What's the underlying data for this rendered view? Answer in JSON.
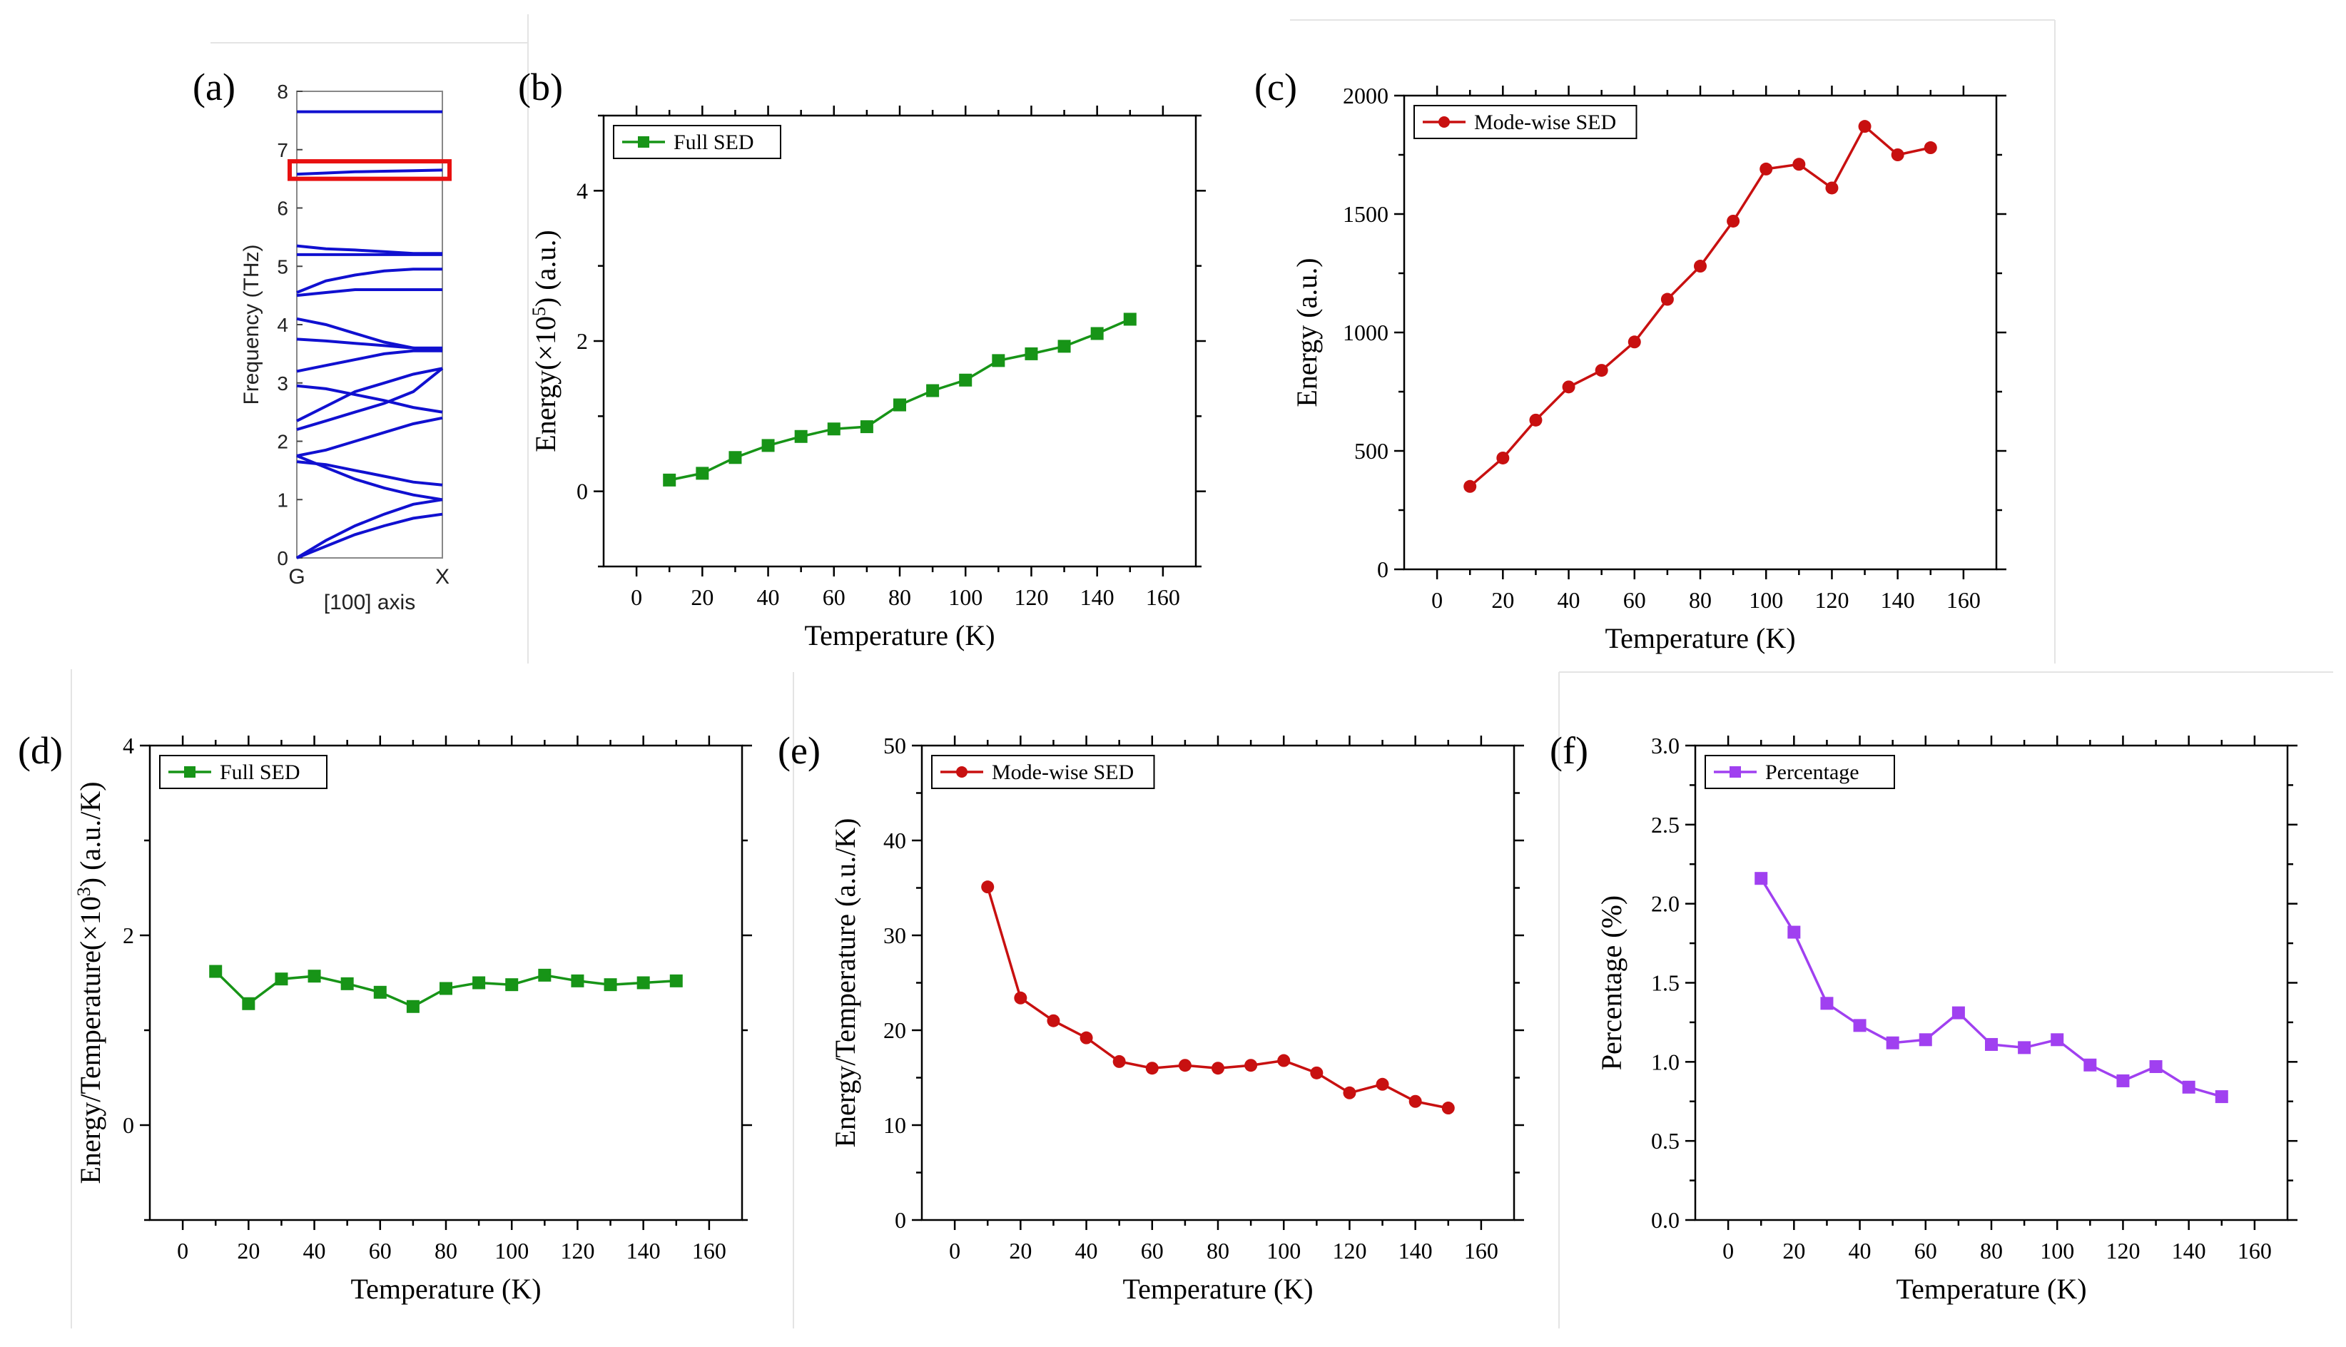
{
  "chart_data": [
    {
      "id": "a",
      "type": "line",
      "panel_label": "(a)",
      "title": "",
      "xlabel": "[100] axis",
      "ylabel": "Frequency (THz)",
      "x_ticks": [
        "G",
        "X"
      ],
      "ylim": [
        0,
        8
      ],
      "y_ticks": [
        0,
        1,
        2,
        3,
        4,
        5,
        6,
        7,
        8
      ],
      "line_color": "#1010d0",
      "highlight_color": "#e81010",
      "highlight_band": [
        6.5,
        6.8
      ],
      "x": [
        0,
        0.2,
        0.4,
        0.6,
        0.8,
        1.0
      ],
      "series": [
        {
          "name": "band-1",
          "values": [
            0.0,
            0.2,
            0.4,
            0.55,
            0.68,
            0.75
          ]
        },
        {
          "name": "band-2",
          "values": [
            0.0,
            0.3,
            0.55,
            0.75,
            0.92,
            1.0
          ]
        },
        {
          "name": "band-3",
          "values": [
            1.65,
            1.6,
            1.5,
            1.4,
            1.3,
            1.25
          ]
        },
        {
          "name": "band-4",
          "values": [
            1.75,
            1.55,
            1.35,
            1.2,
            1.08,
            1.0
          ]
        },
        {
          "name": "band-5",
          "values": [
            1.75,
            1.85,
            2.0,
            2.15,
            2.3,
            2.4
          ]
        },
        {
          "name": "band-6",
          "values": [
            2.2,
            2.35,
            2.5,
            2.65,
            2.85,
            3.25
          ]
        },
        {
          "name": "band-7",
          "values": [
            2.35,
            2.6,
            2.85,
            3.0,
            3.15,
            3.25
          ]
        },
        {
          "name": "band-8",
          "values": [
            2.95,
            2.9,
            2.8,
            2.7,
            2.58,
            2.5
          ]
        },
        {
          "name": "band-9",
          "values": [
            3.2,
            3.3,
            3.4,
            3.5,
            3.55,
            3.55
          ]
        },
        {
          "name": "band-10",
          "values": [
            3.75,
            3.72,
            3.68,
            3.64,
            3.6,
            3.55
          ]
        },
        {
          "name": "band-11",
          "values": [
            4.1,
            4.0,
            3.85,
            3.7,
            3.6,
            3.6
          ]
        },
        {
          "name": "band-12",
          "values": [
            4.5,
            4.55,
            4.6,
            4.6,
            4.6,
            4.6
          ]
        },
        {
          "name": "band-13",
          "values": [
            4.55,
            4.75,
            4.85,
            4.92,
            4.95,
            4.95
          ]
        },
        {
          "name": "band-14",
          "values": [
            5.2,
            5.2,
            5.2,
            5.2,
            5.2,
            5.2
          ]
        },
        {
          "name": "band-15",
          "values": [
            5.35,
            5.3,
            5.28,
            5.25,
            5.22,
            5.22
          ]
        },
        {
          "name": "band-16",
          "values": [
            6.58,
            6.6,
            6.62,
            6.63,
            6.64,
            6.65
          ]
        },
        {
          "name": "band-17",
          "values": [
            7.65,
            7.65,
            7.65,
            7.65,
            7.65,
            7.65
          ]
        }
      ]
    },
    {
      "id": "b",
      "type": "line",
      "panel_label": "(b)",
      "title": "",
      "xlabel": "Temperature (K)",
      "ylabel_main": "Energy(×10",
      "ylabel_sup": "5",
      "ylabel_tail": ") (a.u.)",
      "xlim": [
        -10,
        170
      ],
      "x_ticks": [
        0,
        20,
        40,
        60,
        80,
        100,
        120,
        140,
        160
      ],
      "ylim": [
        -1,
        5
      ],
      "y_ticks": [
        0,
        2,
        4
      ],
      "legend": "Full SED",
      "marker": "square",
      "color": "#179417",
      "x": [
        10,
        20,
        30,
        40,
        50,
        60,
        70,
        80,
        90,
        100,
        110,
        120,
        130,
        140,
        150
      ],
      "values": [
        0.15,
        0.24,
        0.45,
        0.61,
        0.73,
        0.83,
        0.86,
        1.15,
        1.34,
        1.48,
        1.74,
        1.83,
        1.93,
        2.1,
        2.29
      ]
    },
    {
      "id": "c",
      "type": "line",
      "panel_label": "(c)",
      "title": "",
      "xlabel": "Temperature (K)",
      "ylabel": "Energy (a.u.)",
      "xlim": [
        -10,
        170
      ],
      "x_ticks": [
        0,
        20,
        40,
        60,
        80,
        100,
        120,
        140,
        160
      ],
      "ylim": [
        0,
        2000
      ],
      "y_ticks": [
        0,
        500,
        1000,
        1500,
        2000
      ],
      "legend": "Mode-wise SED",
      "marker": "circle",
      "color": "#c81010",
      "x": [
        10,
        20,
        30,
        40,
        50,
        60,
        70,
        80,
        90,
        100,
        110,
        120,
        130,
        140,
        150
      ],
      "values": [
        350,
        470,
        630,
        770,
        840,
        960,
        1140,
        1280,
        1470,
        1690,
        1710,
        1610,
        1870,
        1750,
        1780
      ]
    },
    {
      "id": "d",
      "type": "line",
      "panel_label": "(d)",
      "title": "",
      "xlabel": "Temperature (K)",
      "ylabel_main": "Energy/Temperature(×10",
      "ylabel_sup": "3",
      "ylabel_tail": ") (a.u./K)",
      "xlim": [
        -10,
        170
      ],
      "x_ticks": [
        0,
        20,
        40,
        60,
        80,
        100,
        120,
        140,
        160
      ],
      "ylim": [
        -1,
        4
      ],
      "y_ticks": [
        0,
        2,
        4
      ],
      "legend": "Full SED",
      "marker": "square",
      "color": "#179417",
      "x": [
        10,
        20,
        30,
        40,
        50,
        60,
        70,
        80,
        90,
        100,
        110,
        120,
        130,
        140,
        150
      ],
      "values": [
        1.62,
        1.28,
        1.54,
        1.57,
        1.49,
        1.4,
        1.25,
        1.44,
        1.5,
        1.48,
        1.58,
        1.52,
        1.48,
        1.5,
        1.52
      ]
    },
    {
      "id": "e",
      "type": "line",
      "panel_label": "(e)",
      "title": "",
      "xlabel": "Temperature (K)",
      "ylabel": "Energy/Temperature (a.u./K)",
      "xlim": [
        -10,
        170
      ],
      "x_ticks": [
        0,
        20,
        40,
        60,
        80,
        100,
        120,
        140,
        160
      ],
      "ylim": [
        0,
        50
      ],
      "y_ticks": [
        0,
        10,
        20,
        30,
        40,
        50
      ],
      "legend": "Mode-wise SED",
      "marker": "circle",
      "color": "#c81010",
      "x": [
        10,
        20,
        30,
        40,
        50,
        60,
        70,
        80,
        90,
        100,
        110,
        120,
        130,
        140,
        150
      ],
      "values": [
        35.1,
        23.4,
        21.0,
        19.2,
        16.7,
        16.0,
        16.3,
        16.0,
        16.3,
        16.8,
        15.5,
        13.4,
        14.3,
        12.5,
        11.8
      ]
    },
    {
      "id": "f",
      "type": "line",
      "panel_label": "(f)",
      "title": "",
      "xlabel": "Temperature (K)",
      "ylabel": "Percentage (%)",
      "xlim": [
        -10,
        170
      ],
      "x_ticks": [
        0,
        20,
        40,
        60,
        80,
        100,
        120,
        140,
        160
      ],
      "ylim": [
        0,
        3
      ],
      "y_ticks": [
        "0.0",
        "0.5",
        "1.0",
        "1.5",
        "2.0",
        "2.5",
        "3.0"
      ],
      "legend": "Percentage",
      "marker": "square",
      "color": "#a040f0",
      "x": [
        10,
        20,
        30,
        40,
        50,
        60,
        70,
        80,
        90,
        100,
        110,
        120,
        130,
        140,
        150
      ],
      "values": [
        2.16,
        1.82,
        1.37,
        1.23,
        1.12,
        1.14,
        1.31,
        1.11,
        1.09,
        1.14,
        0.98,
        0.88,
        0.97,
        0.84,
        0.78
      ]
    }
  ]
}
